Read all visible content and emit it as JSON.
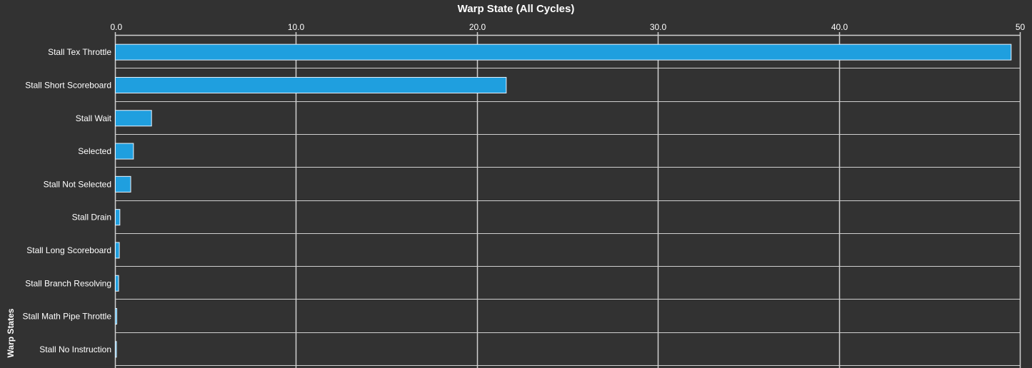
{
  "chart_data": {
    "type": "bar",
    "orientation": "horizontal",
    "title": "Warp State (All Cycles)",
    "xlabel": "",
    "ylabel": "Warp States",
    "xlim": [
      0,
      50
    ],
    "xticks": [
      "0.0",
      "10.0",
      "20.0",
      "30.0",
      "40.0",
      "50"
    ],
    "grid": true,
    "categories": [
      "Stall Tex Throttle",
      "Stall Short Scoreboard",
      "Stall Wait",
      "Selected",
      "Stall Not Selected",
      "Stall Drain",
      "Stall Long Scoreboard",
      "Stall Branch Resolving",
      "Stall Math Pipe Throttle",
      "Stall No Instruction"
    ],
    "values": [
      49.5,
      21.6,
      2.0,
      1.0,
      0.85,
      0.25,
      0.22,
      0.18,
      0.08,
      0.06
    ],
    "colors": {
      "background": "#323232",
      "bar": "#1f9fdf",
      "bar_border": "#e8f4ff",
      "grid": "#d0d0d0",
      "text": "#ffffff"
    }
  }
}
